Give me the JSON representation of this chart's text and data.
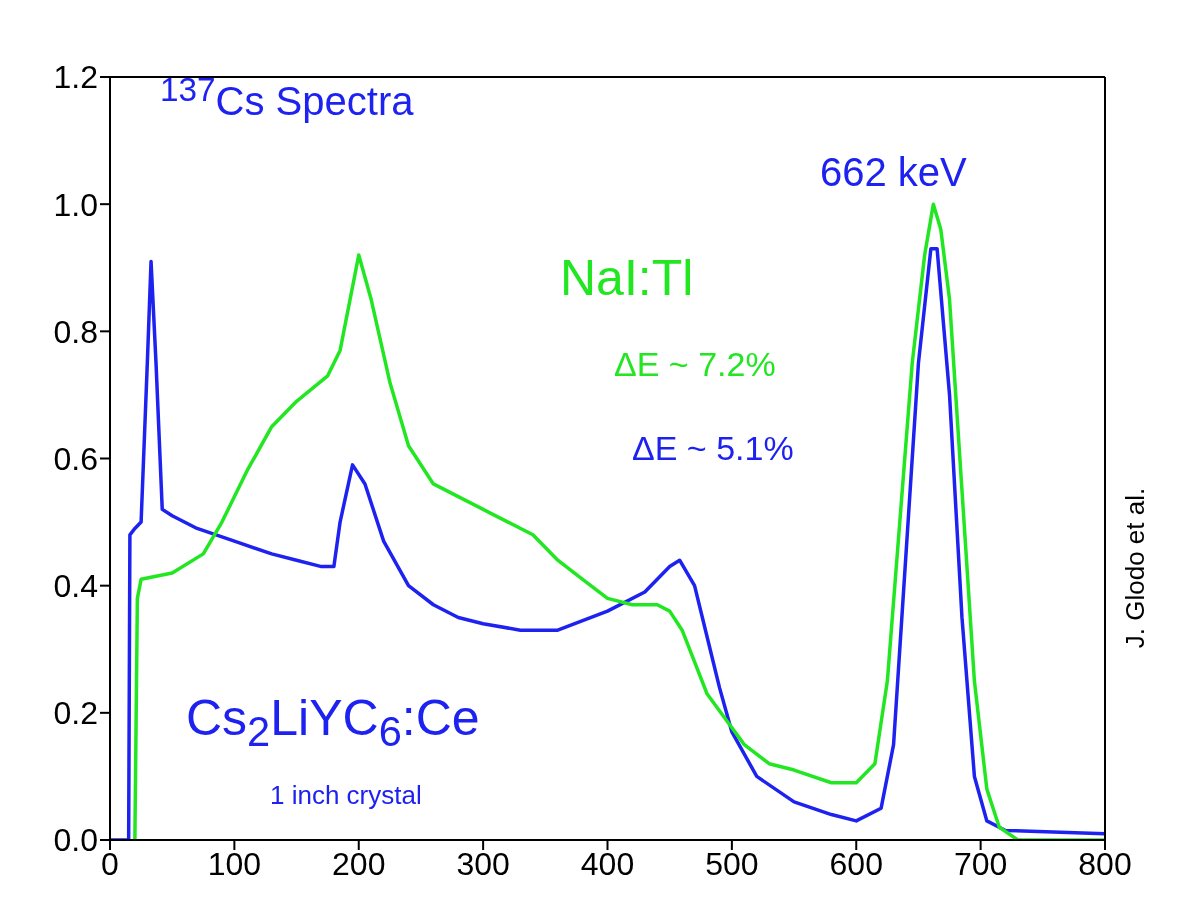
{
  "chart_data": {
    "type": "line",
    "ylim": [
      0,
      1.2
    ],
    "yticks": [
      {
        "value": 0,
        "label": "0.0"
      },
      {
        "value": 0.2,
        "label": "0.2"
      },
      {
        "value": 0.4,
        "label": "0.4"
      },
      {
        "value": 0.6,
        "label": "0.6"
      },
      {
        "value": 0.8,
        "label": "0.8"
      },
      {
        "value": 1.0,
        "label": "1.0"
      },
      {
        "value": 1.2,
        "label": "1.2"
      }
    ],
    "xlim": [
      0,
      800
    ],
    "xticks": [
      0,
      100,
      200,
      300,
      400,
      500,
      600,
      700,
      800
    ],
    "grid": false,
    "legend": false,
    "marker": "none",
    "line_style": "solid",
    "series": [
      {
        "name": "Cs$_{2}$LiYC$_{6}$:Ce",
        "color": "#1e22f0",
        "x": [
          0,
          15,
          16,
          20,
          25,
          30,
          33,
          37,
          42,
          50,
          70,
          100,
          130,
          150,
          170,
          180,
          185,
          195,
          205,
          220,
          240,
          260,
          280,
          300,
          330,
          360,
          400,
          430,
          450,
          458,
          470,
          480,
          490,
          500,
          520,
          550,
          580,
          600,
          620,
          630,
          640,
          650,
          660,
          665,
          675,
          685,
          695,
          705,
          720,
          800
        ],
        "values": [
          0,
          0,
          0.48,
          0.49,
          0.5,
          0.75,
          0.91,
          0.75,
          0.52,
          0.51,
          0.49,
          0.47,
          0.45,
          0.44,
          0.43,
          0.43,
          0.5,
          0.59,
          0.56,
          0.47,
          0.4,
          0.37,
          0.35,
          0.34,
          0.33,
          0.33,
          0.36,
          0.39,
          0.43,
          0.44,
          0.4,
          0.32,
          0.24,
          0.17,
          0.1,
          0.06,
          0.04,
          0.03,
          0.05,
          0.15,
          0.45,
          0.75,
          0.93,
          0.93,
          0.7,
          0.35,
          0.1,
          0.03,
          0.015,
          0.01
        ]
      },
      {
        "name": "NaI:Tl",
        "color": "#22e622",
        "x": [
          20,
          22,
          25,
          50,
          75,
          90,
          110,
          130,
          150,
          175,
          185,
          195,
          200,
          210,
          225,
          240,
          260,
          280,
          300,
          320,
          340,
          360,
          380,
          400,
          420,
          440,
          450,
          460,
          470,
          480,
          495,
          510,
          530,
          550,
          580,
          600,
          615,
          625,
          635,
          645,
          655,
          662,
          668,
          675,
          685,
          695,
          705,
          715,
          730,
          800
        ],
        "values": [
          0,
          0.38,
          0.41,
          0.42,
          0.45,
          0.5,
          0.58,
          0.65,
          0.69,
          0.73,
          0.77,
          0.87,
          0.92,
          0.85,
          0.72,
          0.62,
          0.56,
          0.54,
          0.52,
          0.5,
          0.48,
          0.44,
          0.41,
          0.38,
          0.37,
          0.37,
          0.36,
          0.33,
          0.28,
          0.23,
          0.19,
          0.15,
          0.12,
          0.11,
          0.09,
          0.09,
          0.12,
          0.25,
          0.5,
          0.75,
          0.92,
          1.0,
          0.96,
          0.85,
          0.55,
          0.25,
          0.08,
          0.02,
          0,
          0
        ]
      }
    ],
    "annotations": [
      "$^{137}$Cs Spectra",
      "662 keV",
      "ΔE ~ 7.2%",
      "ΔE ~ 5.1%",
      "1 inch crystal",
      "J. Glodo et al."
    ]
  }
}
